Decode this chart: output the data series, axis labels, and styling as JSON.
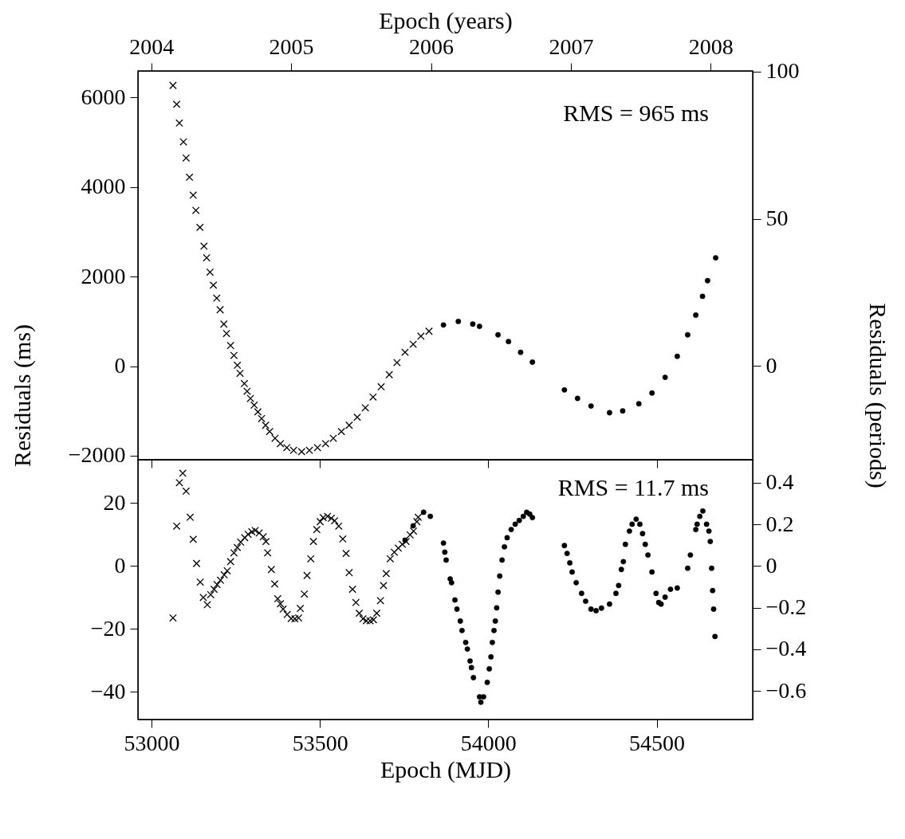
{
  "chart_data": [
    {
      "type": "scatter",
      "x2label": "Epoch (years)",
      "ylabel": "Residuals (ms)",
      "y2label": "Residuals (periods)",
      "annotations": [
        "RMS = 965 ms"
      ],
      "tick_labels": "y",
      "xlim": [
        52960,
        54785
      ],
      "xticks": [
        53000,
        53500,
        54000,
        54500
      ],
      "x2lim": [
        2003.905,
        2008.3
      ],
      "x2ticks": [
        2004,
        2005,
        2006,
        2007,
        2008
      ],
      "ylim": [
        -2090,
        6595
      ],
      "yticks": [
        -2000,
        0,
        2000,
        4000,
        6000
      ],
      "y2lim": [
        -31.8,
        100.2
      ],
      "y2ticks": [
        0,
        50,
        100
      ],
      "series": [
        {
          "color": "#000000",
          "marker": "cross",
          "x": [
            53064,
            53075,
            53083,
            53095,
            53103,
            53113,
            53124,
            53132,
            53144,
            53156,
            53164,
            53174,
            53184,
            53194,
            53204,
            53215,
            53223,
            53235,
            53245,
            53255,
            53263,
            53276,
            53284,
            53294,
            53305,
            53316,
            53327,
            53339,
            53351,
            53367,
            53383,
            53402,
            53422,
            53446,
            53469,
            53493,
            53517,
            53540,
            53564,
            53587,
            53611,
            53635,
            53658,
            53682,
            53706,
            53729,
            53753,
            53777,
            53800,
            53824
          ],
          "values": [
            6270,
            5850,
            5430,
            5010,
            4650,
            4220,
            3820,
            3480,
            3100,
            2680,
            2420,
            2100,
            1810,
            1520,
            1260,
            940,
            730,
            460,
            240,
            20,
            -160,
            -390,
            -560,
            -720,
            -870,
            -1020,
            -1170,
            -1320,
            -1460,
            -1610,
            -1730,
            -1820,
            -1880,
            -1910,
            -1880,
            -1820,
            -1730,
            -1610,
            -1460,
            -1320,
            -1140,
            -930,
            -690,
            -460,
            -190,
            80,
            310,
            490,
            670,
            780
          ]
        },
        {
          "color": "#000000",
          "marker": "circle",
          "x": [
            53867,
            53911,
            53954,
            53974,
            54029,
            54060,
            54096,
            54131,
            54226,
            54265,
            54305,
            54360,
            54399,
            54447,
            54486,
            54525,
            54561,
            54592,
            54616,
            54636,
            54651,
            54675
          ],
          "values": [
            920,
            1000,
            940,
            890,
            700,
            550,
            310,
            90,
            -530,
            -720,
            -890,
            -1040,
            -1000,
            -840,
            -600,
            -250,
            220,
            700,
            1140,
            1560,
            1910,
            2420
          ]
        }
      ]
    },
    {
      "type": "scatter",
      "xlabel": "Epoch (MJD)",
      "annotations": [
        "RMS = 11.7 ms"
      ],
      "xlim": [
        52960,
        54785
      ],
      "xticks": [
        53000,
        53500,
        54000,
        54500
      ],
      "ylim": [
        -48.8,
        33.8
      ],
      "yticks": [
        -40,
        -20,
        0,
        20
      ],
      "y2lim": [
        -0.737,
        0.51
      ],
      "y2ticks": [
        -0.6,
        -0.4,
        -0.2,
        0,
        0.2,
        0.4
      ],
      "series": [
        {
          "color": "#000000",
          "marker": "cross",
          "x": [
            53064,
            53075,
            53083,
            53093,
            53103,
            53115,
            53124,
            53134,
            53145,
            53154,
            53166,
            53176,
            53186,
            53195,
            53205,
            53216,
            53225,
            53235,
            53245,
            53255,
            53265,
            53277,
            53287,
            53298,
            53308,
            53320,
            53332,
            53340,
            53345,
            53356,
            53366,
            53375,
            53383,
            53391,
            53403,
            53415,
            53426,
            53437,
            53442,
            53454,
            53462,
            53473,
            53481,
            53491,
            53501,
            53510,
            53523,
            53534,
            53544,
            53556,
            53568,
            53578,
            53587,
            53597,
            53607,
            53617,
            53628,
            53638,
            53649,
            53659,
            53669,
            53680,
            53689,
            53697,
            53709,
            53721,
            53733,
            53745,
            53756,
            53768,
            53778,
            53788,
            53792
          ],
          "values": [
            -16.5,
            12.7,
            26.5,
            29.5,
            23.8,
            15.5,
            8.5,
            0.8,
            -5.1,
            -10,
            -12.3,
            -9.1,
            -7.4,
            -5.9,
            -4.5,
            -2.8,
            -1.5,
            1.4,
            4.2,
            5.9,
            7.6,
            9,
            10.1,
            10.9,
            11.3,
            10.5,
            9.3,
            7.8,
            4.2,
            -1.1,
            -5.7,
            -10.4,
            -12,
            -13.7,
            -15.4,
            -16.7,
            -16.8,
            -16.5,
            -13.5,
            -8.9,
            -3,
            2.3,
            7.8,
            11.6,
            14.1,
            15.4,
            15.8,
            15.2,
            14.4,
            12.7,
            8.6,
            4,
            -2.1,
            -7.4,
            -11.6,
            -15,
            -16.8,
            -17.4,
            -17.4,
            -17.1,
            -15,
            -11,
            -6.2,
            -2.4,
            2.3,
            4.4,
            5.7,
            6.9,
            7.8,
            9.9,
            11.1,
            14.1,
            15.5
          ]
        },
        {
          "color": "#000000",
          "marker": "circle",
          "x": [
            53753,
            53777,
            53808,
            53828,
            53867,
            53871,
            53875,
            53887,
            53891,
            53901,
            53907,
            53917,
            53922,
            53933,
            53938,
            53946,
            53950,
            53956,
            53974,
            53978,
            53986,
            53997,
            54003,
            54008,
            54012,
            54017,
            54021,
            54025,
            54029,
            54034,
            54041,
            54048,
            54056,
            54068,
            54080,
            54092,
            54104,
            54114,
            54123,
            54131,
            54226,
            54234,
            54242,
            54249,
            54261,
            54277,
            54289,
            54305,
            54320,
            54336,
            54360,
            54379,
            54387,
            54395,
            54401,
            54407,
            54419,
            54427,
            54439,
            54450,
            54458,
            54466,
            54474,
            54486,
            54498,
            54506,
            54513,
            54525,
            54541,
            54561,
            54592,
            54600,
            54616,
            54620,
            54628,
            54637,
            54648,
            54655,
            54659,
            54663,
            54666,
            54669,
            54673
          ],
          "values": [
            8.2,
            12.8,
            17.1,
            15.8,
            7.3,
            4.4,
            1.9,
            -4.1,
            -5.3,
            -10.8,
            -13.7,
            -17.5,
            -20.5,
            -24.3,
            -26.4,
            -30.2,
            -32.3,
            -35.5,
            -41.6,
            -43.3,
            -41.6,
            -37,
            -32.7,
            -28.9,
            -24.3,
            -20.5,
            -17.5,
            -13.3,
            -8.3,
            -3.2,
            1.9,
            6.1,
            9,
            11.6,
            13.3,
            14.5,
            15.8,
            17.1,
            16.5,
            15.4,
            6.5,
            4,
            1,
            -1.9,
            -5.3,
            -8.7,
            -11.2,
            -13.7,
            -14.2,
            -13.4,
            -12.1,
            -8.7,
            -6.2,
            -1.1,
            1.4,
            6.9,
            11.1,
            13.3,
            14.9,
            13.3,
            10.3,
            6.9,
            3.5,
            -1.9,
            -8.7,
            -11.6,
            -12.1,
            -9.9,
            -7.4,
            -7,
            -0.7,
            3.5,
            11.6,
            13.3,
            15.8,
            17.5,
            13.3,
            11.1,
            7.8,
            -0.7,
            -7.8,
            -13.7,
            -22.4
          ]
        }
      ]
    }
  ]
}
